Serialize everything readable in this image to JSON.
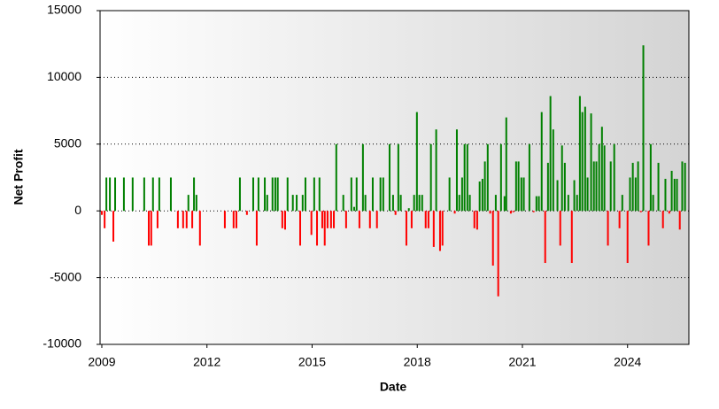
{
  "chart_data": {
    "type": "bar",
    "x_label": "Date",
    "y_label": "Net Profit",
    "color": "#008000",
    "negative_color": "#ff0000",
    "grid": true,
    "xlim": [
      2008.95,
      2025.75
    ],
    "xticks": [
      2009,
      2012,
      2015,
      2018,
      2021,
      2024
    ],
    "ylim": [
      -10000,
      15000
    ],
    "yticks": [
      -10000,
      -5000,
      0,
      5000,
      10000,
      15000
    ],
    "x": [
      2009.0,
      2009.08,
      2009.13,
      2009.23,
      2009.33,
      2009.38,
      2009.63,
      2009.88,
      2010.21,
      2010.34,
      2010.41,
      2010.46,
      2010.59,
      2010.64,
      2010.97,
      2011.17,
      2011.32,
      2011.42,
      2011.47,
      2011.58,
      2011.63,
      2011.7,
      2011.8,
      2012.51,
      2012.76,
      2012.84,
      2012.94,
      2013.14,
      2013.32,
      2013.42,
      2013.47,
      2013.65,
      2013.72,
      2013.87,
      2013.95,
      2014.02,
      2014.15,
      2014.23,
      2014.3,
      2014.45,
      2014.56,
      2014.66,
      2014.73,
      2014.81,
      2014.98,
      2015.06,
      2015.14,
      2015.21,
      2015.29,
      2015.36,
      2015.44,
      2015.54,
      2015.62,
      2015.69,
      2015.89,
      2015.97,
      2016.12,
      2016.2,
      2016.27,
      2016.35,
      2016.45,
      2016.52,
      2016.65,
      2016.73,
      2016.85,
      2016.95,
      2017.03,
      2017.21,
      2017.31,
      2017.38,
      2017.46,
      2017.53,
      2017.69,
      2017.76,
      2017.84,
      2017.91,
      2017.99,
      2018.06,
      2018.14,
      2018.24,
      2018.32,
      2018.39,
      2018.47,
      2018.54,
      2018.65,
      2018.72,
      2018.92,
      2019.07,
      2019.13,
      2019.2,
      2019.28,
      2019.35,
      2019.43,
      2019.5,
      2019.63,
      2019.71,
      2019.78,
      2019.86,
      2019.93,
      2020.01,
      2020.08,
      2020.16,
      2020.24,
      2020.31,
      2020.39,
      2020.49,
      2020.54,
      2020.67,
      2020.74,
      2020.82,
      2020.89,
      2020.97,
      2021.04,
      2021.2,
      2021.32,
      2021.4,
      2021.47,
      2021.55,
      2021.65,
      2021.73,
      2021.8,
      2021.88,
      2022.0,
      2022.08,
      2022.13,
      2022.21,
      2022.31,
      2022.41,
      2022.48,
      2022.56,
      2022.64,
      2022.71,
      2022.79,
      2022.86,
      2022.96,
      2023.04,
      2023.11,
      2023.19,
      2023.27,
      2023.34,
      2023.44,
      2023.52,
      2023.62,
      2023.77,
      2023.85,
      2024.0,
      2024.07,
      2024.15,
      2024.23,
      2024.3,
      2024.38,
      2024.45,
      2024.6,
      2024.66,
      2024.73,
      2024.88,
      2025.01,
      2025.08,
      2025.19,
      2025.26,
      2025.34,
      2025.41,
      2025.49,
      2025.56,
      2025.64
    ],
    "values": [
      -300,
      -1300,
      2500,
      2500,
      -2300,
      2500,
      2500,
      2500,
      2500,
      -2600,
      -2600,
      2500,
      -1300,
      2500,
      2500,
      -1300,
      -1300,
      -1300,
      1200,
      -1300,
      2500,
      1200,
      -2600,
      -1300,
      -1300,
      -1300,
      2500,
      -300,
      2500,
      -2600,
      2500,
      2500,
      1200,
      2500,
      2500,
      2500,
      -1300,
      -1400,
      2500,
      1200,
      1200,
      -2600,
      1200,
      2500,
      -1800,
      2500,
      -2600,
      2500,
      -1300,
      -2600,
      -1300,
      -1300,
      -1300,
      5000,
      1200,
      -1300,
      2500,
      300,
      2500,
      -1300,
      5000,
      1200,
      -1300,
      2500,
      -1300,
      2500,
      2500,
      5000,
      1200,
      -300,
      5000,
      1200,
      -2600,
      200,
      -1300,
      1200,
      7400,
      1200,
      1200,
      -1300,
      -1300,
      5000,
      -2700,
      6100,
      -3000,
      -2600,
      2500,
      -200,
      6100,
      1200,
      2500,
      5000,
      5000,
      1200,
      -1300,
      -1400,
      2200,
      2400,
      3700,
      5000,
      -200,
      -4100,
      1200,
      -6400,
      5000,
      1100,
      7000,
      -200,
      -100,
      3700,
      3700,
      2500,
      2500,
      5000,
      -100,
      1100,
      1100,
      7400,
      -3900,
      3600,
      8600,
      6100,
      2300,
      -2600,
      4900,
      3600,
      1200,
      -3900,
      2300,
      1200,
      8600,
      7400,
      7800,
      2500,
      7300,
      3700,
      3700,
      5000,
      6300,
      4900,
      -2600,
      3700,
      5000,
      -1300,
      1200,
      -3900,
      2500,
      3600,
      2500,
      3700,
      -100,
      12400,
      -2600,
      5000,
      1200,
      3600,
      -1300,
      2400,
      -200,
      3000,
      2400,
      2400,
      -1400,
      3700,
      3600
    ]
  }
}
